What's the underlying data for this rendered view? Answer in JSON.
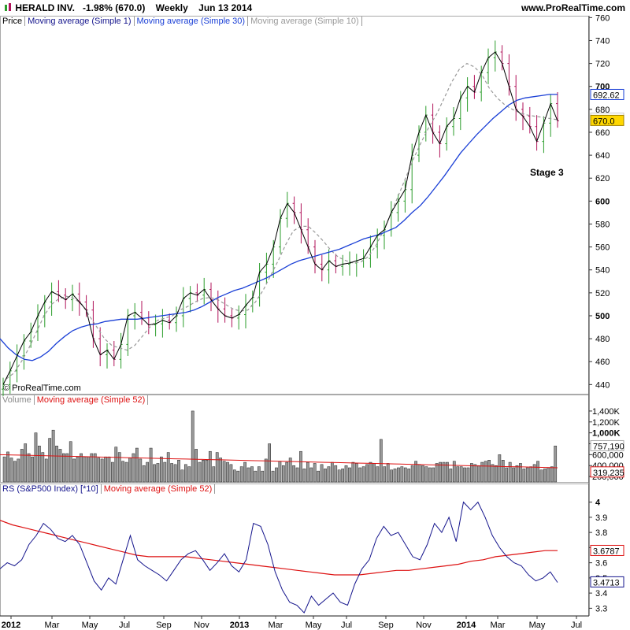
{
  "header": {
    "symbol": "HERALD INV.",
    "change": "-1.98% (670.0)",
    "period": "Weekly",
    "date": "Jun 13 2014",
    "site": "www.ProRealTime.com"
  },
  "price_legend": [
    "Price",
    "Moving average (Simple 1)",
    "Moving average (Simple 30)",
    "Moving average (Simple 10)"
  ],
  "volume_legend": [
    "Volume",
    "Moving average (Simple 52)"
  ],
  "rs_legend": [
    "RS (S&P500 Index) [*10]",
    "Moving average (Simple 52)"
  ],
  "copyright": "© ProRealTime.com",
  "annotation": "Stage 3",
  "colors": {
    "up": "#2a9d2a",
    "down": "#b0125a",
    "close_line": "#000000",
    "ma30": "#1a3fd6",
    "ma10": "#999999",
    "ma52_red": "#dd1111",
    "rs_line": "#14148c",
    "volume_bar": "#999999",
    "badge_price": "#ffd700"
  },
  "badges": {
    "ma30": "692.62",
    "ma10": "670.60",
    "price": "670.0",
    "vol_ma": "757,190",
    "vol_last": "319,235",
    "rs_ma": "3.6787",
    "rs_last": "3.4713"
  },
  "chart_data": [
    {
      "type": "line",
      "title": "Price",
      "ylim": [
        432,
        752
      ],
      "yticks": [
        "440",
        "460",
        "480",
        "500",
        "520",
        "540",
        "560",
        "580",
        "600",
        "620",
        "640",
        "660",
        "680",
        "700",
        "720",
        "740",
        "760"
      ],
      "x_axis_labels": [
        "2012",
        "Mar",
        "May",
        "Jul",
        "Sep",
        "Nov",
        "2013",
        "Mar",
        "May",
        "Jul",
        "Sep",
        "Nov",
        "2014",
        "Mar",
        "May",
        "Jul"
      ],
      "series": [
        {
          "name": "Moving average (Simple 1)",
          "values": [
            440,
            452,
            465,
            478,
            486,
            500,
            512,
            521,
            518,
            514,
            519,
            512,
            505,
            480,
            466,
            470,
            462,
            475,
            500,
            503,
            498,
            492,
            493,
            496,
            494,
            500,
            515,
            520,
            518,
            523,
            514,
            506,
            500,
            498,
            501,
            509,
            516,
            538,
            545,
            560,
            585,
            598,
            590,
            575,
            560,
            545,
            540,
            548,
            543,
            545,
            546,
            548,
            550,
            560,
            570,
            575,
            590,
            600,
            610,
            640,
            660,
            675,
            660,
            650,
            665,
            672,
            690,
            700,
            695,
            712,
            725,
            730,
            720,
            700,
            680,
            674,
            665,
            652,
            668,
            685,
            670
          ]
        },
        {
          "name": "Moving average (Simple 30)",
          "values": [
            480,
            472,
            466,
            462,
            461,
            464,
            469,
            476,
            482,
            487,
            490,
            492,
            493,
            495,
            496,
            497,
            497,
            497,
            498,
            499,
            500,
            501,
            502,
            503,
            505,
            508,
            512,
            516,
            519,
            522,
            524,
            527,
            530,
            533,
            537,
            541,
            545,
            548,
            550,
            552,
            554,
            556,
            558,
            561,
            564,
            567,
            569,
            571,
            574,
            577,
            583,
            590,
            596,
            604,
            613,
            622,
            632,
            642,
            650,
            658,
            665,
            672,
            678,
            684,
            688,
            690,
            691,
            692,
            693,
            693
          ]
        },
        {
          "name": "Moving average (Simple 10)",
          "values": [
            445,
            450,
            460,
            472,
            486,
            500,
            510,
            515,
            517,
            515,
            510,
            500,
            490,
            480,
            474,
            472,
            470,
            474,
            482,
            490,
            496,
            498,
            500,
            505,
            508,
            512,
            515,
            516,
            514,
            510,
            506,
            504,
            505,
            512,
            522,
            535,
            548,
            562,
            574,
            578,
            578,
            572,
            565,
            557,
            551,
            548,
            546,
            547,
            552,
            562,
            575,
            590,
            606,
            622,
            638,
            652,
            665,
            676,
            690,
            704,
            715,
            720,
            717,
            710,
            698,
            690,
            684,
            680,
            677,
            675,
            674,
            673,
            672,
            671
          ]
        }
      ]
    },
    {
      "type": "bar",
      "title": "Volume",
      "yticks": [
        "200,000",
        "400,000",
        "600,000",
        "800,000",
        "1,000K",
        "1,200K",
        "1,400K"
      ],
      "ylim": [
        100000,
        1500000
      ],
      "series": [
        {
          "name": "Volume",
          "values": [
            560000,
            650000,
            540000,
            480000,
            520000,
            700000,
            800000,
            620000,
            560000,
            1000000,
            760000,
            640000,
            520000,
            900000,
            1050000,
            760000,
            700000,
            620000,
            620000,
            840000,
            520000,
            560000,
            620000,
            560000,
            560000,
            620000,
            620000,
            540000,
            520000,
            560000,
            560000,
            460000,
            740000,
            640000,
            480000,
            460000,
            540000,
            620000,
            720000,
            520000,
            400000,
            460000,
            720000,
            420000,
            440000,
            560000,
            460000,
            640000,
            440000,
            420000,
            500000,
            320000,
            420000,
            380000,
            1400000,
            700000,
            460000,
            500000,
            500000,
            660000,
            380000,
            640000,
            540000,
            480000,
            460000,
            420000,
            320000,
            300000,
            380000,
            460000,
            360000,
            380000,
            300000,
            380000,
            300000,
            520000,
            800000,
            300000,
            360000,
            480000,
            400000,
            460000,
            540000,
            400000,
            360000,
            660000,
            340000,
            460000,
            360000,
            440000,
            300000,
            420000,
            340000,
            380000,
            460000,
            400000,
            320000,
            340000,
            400000,
            360000,
            460000,
            440000,
            360000,
            380000,
            420000,
            460000,
            440000,
            380000,
            880000,
            380000,
            440000,
            320000,
            340000,
            360000,
            380000,
            360000,
            340000,
            400000,
            480000,
            420000,
            400000,
            380000,
            360000,
            360000,
            440000,
            460000,
            460000,
            460000,
            340000,
            480000,
            380000,
            380000,
            360000,
            360000,
            440000,
            420000,
            400000,
            460000,
            480000,
            500000,
            420000,
            400000,
            600000,
            500000,
            360000,
            460000,
            360000,
            400000,
            440000,
            340000,
            360000,
            380000,
            420000,
            480000,
            320000,
            340000,
            360000,
            380000,
            760000
          ]
        },
        {
          "name": "Moving average (Simple 52)",
          "values": [
            600000,
            595000,
            590000,
            585000,
            580000,
            575000,
            570000,
            565000,
            560000,
            555000,
            550000,
            545000,
            540000,
            535000,
            530000,
            525000,
            520000,
            515000,
            510000,
            505000,
            500000,
            495000,
            490000,
            485000,
            480000,
            475000,
            470000,
            465000,
            460000,
            455000,
            450000,
            445000,
            440000,
            435000,
            430000,
            425000,
            420000,
            415000,
            410000,
            405000,
            400000,
            395000,
            390000,
            385000,
            380000,
            375000,
            370000,
            365000,
            360000
          ]
        }
      ]
    },
    {
      "type": "line",
      "title": "RS (S&P500 Index) [*10]",
      "ylim": [
        3.25,
        4.05
      ],
      "yticks": [
        "3.3",
        "3.4",
        "3.5",
        "3.6",
        "3.7",
        "3.8",
        "3.9",
        "4"
      ],
      "series": [
        {
          "name": "RS (S&P500 Index) [*10]",
          "values": [
            3.56,
            3.6,
            3.58,
            3.62,
            3.72,
            3.78,
            3.86,
            3.82,
            3.76,
            3.74,
            3.78,
            3.72,
            3.6,
            3.48,
            3.42,
            3.5,
            3.46,
            3.62,
            3.78,
            3.62,
            3.58,
            3.55,
            3.52,
            3.48,
            3.55,
            3.62,
            3.66,
            3.68,
            3.62,
            3.55,
            3.6,
            3.66,
            3.58,
            3.54,
            3.62,
            3.86,
            3.84,
            3.72,
            3.54,
            3.42,
            3.34,
            3.32,
            3.27,
            3.38,
            3.32,
            3.36,
            3.4,
            3.34,
            3.32,
            3.46,
            3.56,
            3.62,
            3.76,
            3.84,
            3.78,
            3.8,
            3.72,
            3.64,
            3.62,
            3.72,
            3.86,
            3.8,
            3.9,
            3.74,
            4.0,
            3.95,
            4.0,
            3.9,
            3.78,
            3.7,
            3.64,
            3.6,
            3.58,
            3.52,
            3.48,
            3.5,
            3.54,
            3.47
          ]
        },
        {
          "name": "Moving average (Simple 52)",
          "values": [
            3.88,
            3.85,
            3.83,
            3.81,
            3.79,
            3.77,
            3.75,
            3.73,
            3.71,
            3.69,
            3.67,
            3.65,
            3.64,
            3.64,
            3.64,
            3.64,
            3.63,
            3.62,
            3.61,
            3.6,
            3.59,
            3.58,
            3.57,
            3.56,
            3.55,
            3.54,
            3.53,
            3.52,
            3.52,
            3.52,
            3.53,
            3.54,
            3.55,
            3.55,
            3.56,
            3.57,
            3.58,
            3.59,
            3.61,
            3.62,
            3.64,
            3.65,
            3.66,
            3.67,
            3.68,
            3.68
          ]
        }
      ]
    }
  ]
}
